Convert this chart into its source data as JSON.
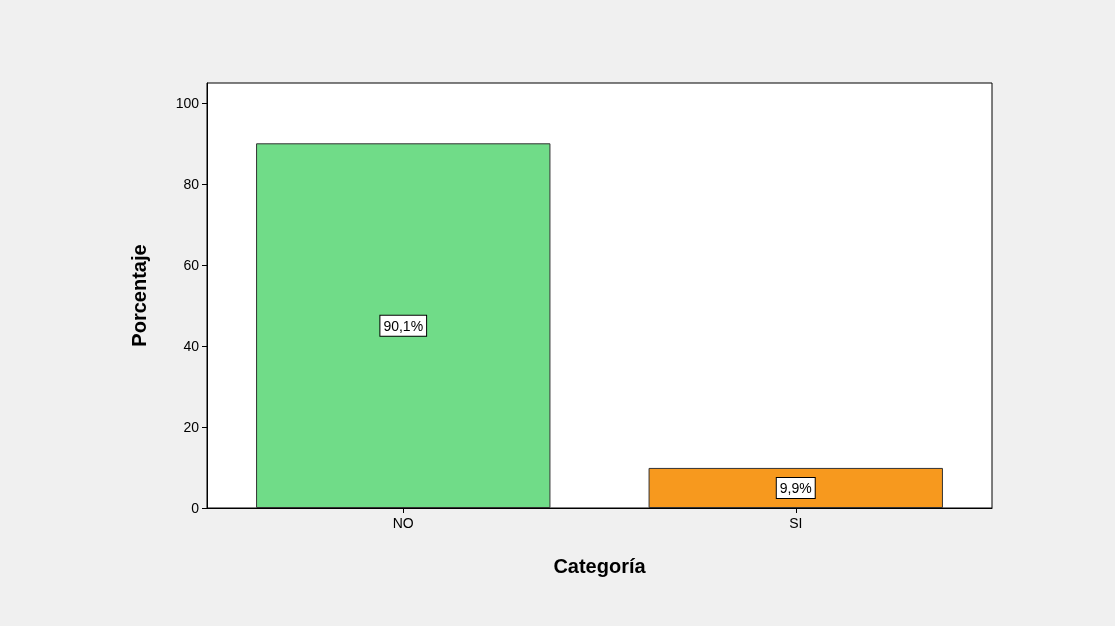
{
  "chart_data": {
    "type": "bar",
    "xlabel": "Categoría",
    "ylabel": "Porcentaje",
    "categories": [
      "NO",
      "SI"
    ],
    "values": [
      90.1,
      9.9
    ],
    "colors": [
      "#70dc88",
      "#f7991e"
    ],
    "value_labels": [
      "90,1%",
      "9,9%"
    ],
    "ylim": [
      0,
      105
    ],
    "yticks": [
      0,
      20,
      40,
      60,
      80,
      100
    ],
    "grid": false
  }
}
